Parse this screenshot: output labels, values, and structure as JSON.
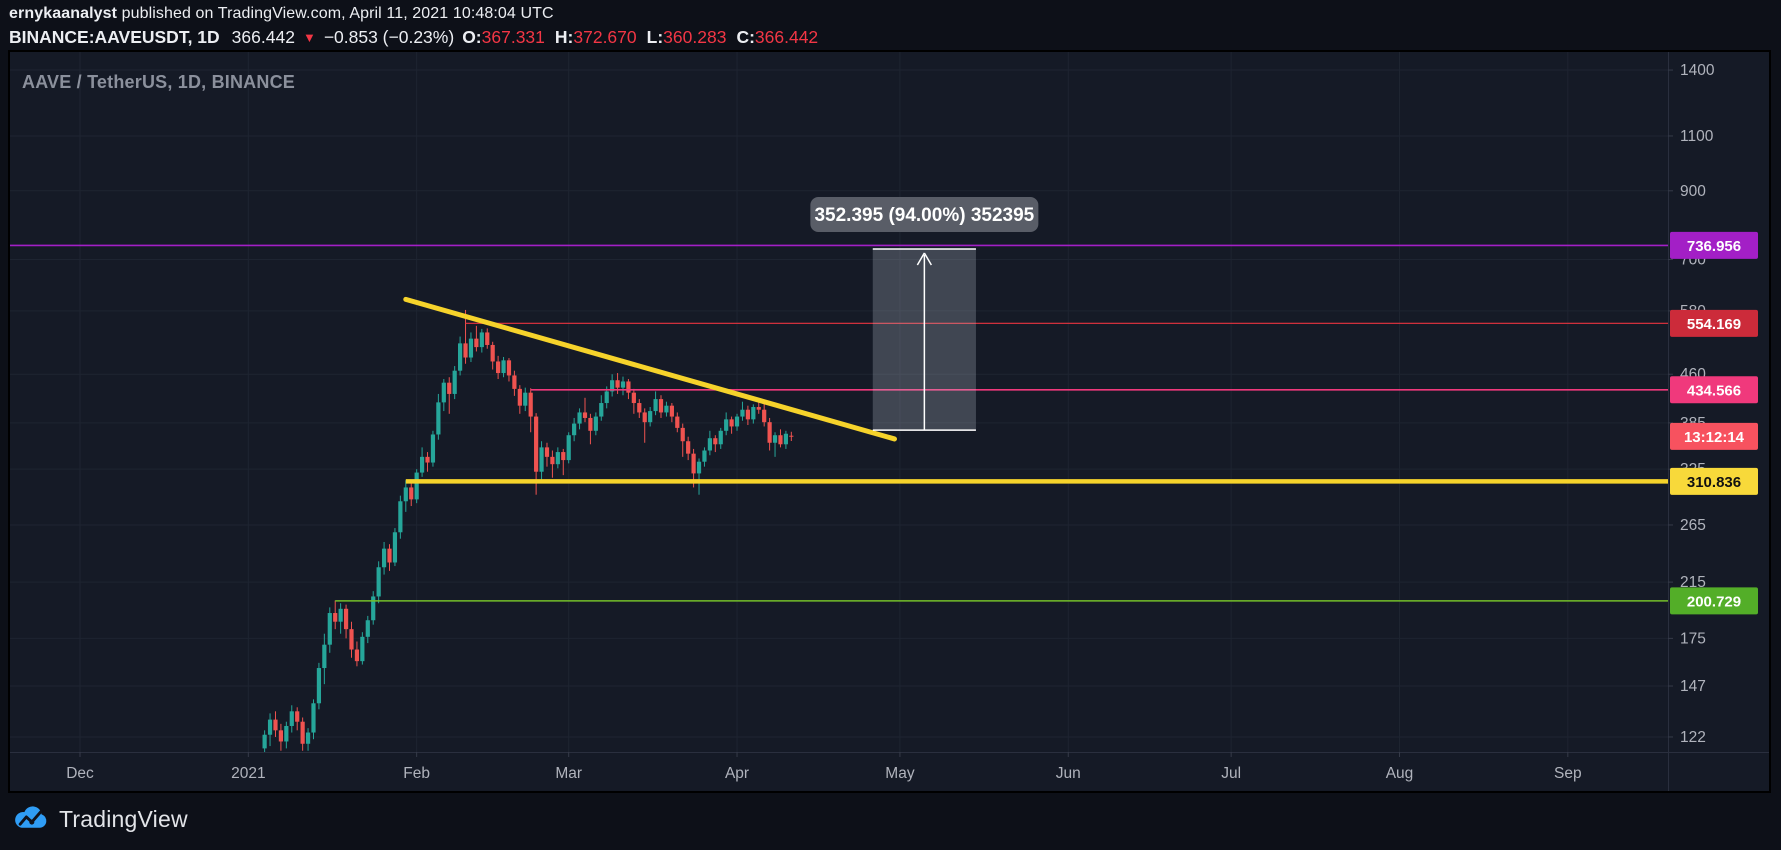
{
  "header": {
    "username": "ernykaanalyst",
    "byline_rest": " published on TradingView.com, April 11, 2021 10:48:04 UTC",
    "symbol": "BINANCE:AAVEUSDT, 1D",
    "last_price": "366.442",
    "change": "−0.853 (−0.23%)",
    "ohlc": [
      {
        "label": "O:",
        "value": "367.331"
      },
      {
        "label": "H:",
        "value": "372.670"
      },
      {
        "label": "L:",
        "value": "360.283"
      },
      {
        "label": "C:",
        "value": "366.442"
      }
    ],
    "value_color": "#f23645"
  },
  "chart": {
    "watermark": "AAVE / TetherUS, 1D, BINANCE"
  },
  "chart_data": {
    "type": "candlestick",
    "symbol": "AAVE/USDT",
    "interval": "1D",
    "colors": {
      "up": "#26a69a",
      "down": "#ef5350",
      "grid": "#1e2431",
      "axis_text": "#b0b3bc"
    },
    "x_axis": {
      "visible_range": [
        "2020-11-18",
        "2021-09-19"
      ],
      "ticks": [
        {
          "date": "2020-12-01",
          "label": "Dec"
        },
        {
          "date": "2021-01-01",
          "label": "2021"
        },
        {
          "date": "2021-02-01",
          "label": "Feb"
        },
        {
          "date": "2021-03-01",
          "label": "Mar"
        },
        {
          "date": "2021-04-01",
          "label": "Apr"
        },
        {
          "date": "2021-05-01",
          "label": "May"
        },
        {
          "date": "2021-06-01",
          "label": "Jun"
        },
        {
          "date": "2021-07-01",
          "label": "Jul"
        },
        {
          "date": "2021-08-01",
          "label": "Aug"
        },
        {
          "date": "2021-09-01",
          "label": "Sep"
        }
      ]
    },
    "y_axis": {
      "scale": "log",
      "visible_range": [
        115,
        1520
      ],
      "ticks": [
        1400,
        1100,
        900,
        700,
        580,
        460,
        385,
        325,
        265,
        215,
        175,
        147,
        122
      ]
    },
    "candles": [
      [
        "2021-01-04",
        117,
        125,
        111,
        123
      ],
      [
        "2021-01-05",
        123,
        133,
        118,
        130
      ],
      [
        "2021-01-06",
        130,
        134,
        122,
        125
      ],
      [
        "2021-01-07",
        125,
        128,
        116,
        120
      ],
      [
        "2021-01-08",
        120,
        129,
        117,
        127
      ],
      [
        "2021-01-09",
        127,
        137,
        124,
        134
      ],
      [
        "2021-01-10",
        134,
        136,
        125,
        129
      ],
      [
        "2021-01-11",
        129,
        131,
        116,
        119
      ],
      [
        "2021-01-12",
        119,
        126,
        116,
        124
      ],
      [
        "2021-01-13",
        124,
        140,
        121,
        138
      ],
      [
        "2021-01-14",
        138,
        160,
        135,
        157
      ],
      [
        "2021-01-15",
        157,
        178,
        148,
        171
      ],
      [
        "2021-01-16",
        171,
        196,
        166,
        192
      ],
      [
        "2021-01-17",
        192,
        201,
        181,
        186
      ],
      [
        "2021-01-18",
        186,
        199,
        178,
        195
      ],
      [
        "2021-01-19",
        195,
        198,
        175,
        181
      ],
      [
        "2021-01-20",
        181,
        186,
        163,
        168
      ],
      [
        "2021-01-21",
        168,
        173,
        158,
        161
      ],
      [
        "2021-01-22",
        161,
        179,
        159,
        176
      ],
      [
        "2021-01-23",
        176,
        190,
        172,
        187
      ],
      [
        "2021-01-24",
        187,
        208,
        184,
        204
      ],
      [
        "2021-01-25",
        204,
        232,
        199,
        227
      ],
      [
        "2021-01-26",
        227,
        249,
        221,
        243
      ],
      [
        "2021-01-27",
        243,
        247,
        224,
        231
      ],
      [
        "2021-01-28",
        231,
        262,
        228,
        258
      ],
      [
        "2021-01-29",
        258,
        295,
        252,
        289
      ],
      [
        "2021-01-30",
        289,
        312,
        278,
        304
      ],
      [
        "2021-01-31",
        304,
        309,
        284,
        291
      ],
      [
        "2021-02-01",
        291,
        325,
        287,
        321
      ],
      [
        "2021-02-02",
        321,
        352,
        316,
        340
      ],
      [
        "2021-02-03",
        340,
        346,
        322,
        333
      ],
      [
        "2021-02-04",
        333,
        374,
        328,
        369
      ],
      [
        "2021-02-05",
        369,
        428,
        362,
        415
      ],
      [
        "2021-02-06",
        415,
        452,
        402,
        446
      ],
      [
        "2021-02-07",
        446,
        455,
        398,
        428
      ],
      [
        "2021-02-08",
        428,
        474,
        420,
        466
      ],
      [
        "2021-02-09",
        466,
        528,
        458,
        515
      ],
      [
        "2021-02-10",
        515,
        582,
        478,
        489
      ],
      [
        "2021-02-11",
        489,
        536,
        481,
        524
      ],
      [
        "2021-02-12",
        524,
        549,
        500,
        508
      ],
      [
        "2021-02-13",
        508,
        543,
        498,
        536
      ],
      [
        "2021-02-14",
        536,
        544,
        505,
        512
      ],
      [
        "2021-02-15",
        512,
        518,
        468,
        482
      ],
      [
        "2021-02-16",
        482,
        492,
        452,
        462
      ],
      [
        "2021-02-17",
        462,
        490,
        455,
        484
      ],
      [
        "2021-02-18",
        484,
        488,
        448,
        458
      ],
      [
        "2021-02-19",
        458,
        466,
        425,
        436
      ],
      [
        "2021-02-20",
        436,
        442,
        398,
        410
      ],
      [
        "2021-02-21",
        410,
        438,
        402,
        430
      ],
      [
        "2021-02-22",
        430,
        437,
        372,
        394
      ],
      [
        "2021-02-23",
        394,
        399,
        296,
        322
      ],
      [
        "2021-02-24",
        322,
        360,
        310,
        352
      ],
      [
        "2021-02-25",
        352,
        358,
        328,
        340
      ],
      [
        "2021-02-26",
        340,
        348,
        315,
        331
      ],
      [
        "2021-02-27",
        331,
        352,
        326,
        346
      ],
      [
        "2021-02-28",
        346,
        350,
        318,
        336
      ],
      [
        "2021-03-01",
        336,
        372,
        332,
        368
      ],
      [
        "2021-03-02",
        368,
        392,
        360,
        384
      ],
      [
        "2021-03-03",
        384,
        406,
        376,
        400
      ],
      [
        "2021-03-04",
        400,
        422,
        386,
        392
      ],
      [
        "2021-03-05",
        392,
        398,
        356,
        374
      ],
      [
        "2021-03-06",
        374,
        400,
        368,
        394
      ],
      [
        "2021-03-07",
        394,
        426,
        388,
        414
      ],
      [
        "2021-03-08",
        414,
        440,
        406,
        432
      ],
      [
        "2021-03-09",
        432,
        460,
        424,
        450
      ],
      [
        "2021-03-10",
        450,
        462,
        428,
        438
      ],
      [
        "2021-03-11",
        438,
        456,
        426,
        448
      ],
      [
        "2021-03-12",
        448,
        452,
        420,
        430
      ],
      [
        "2021-03-13",
        430,
        436,
        398,
        414
      ],
      [
        "2021-03-14",
        414,
        420,
        392,
        400
      ],
      [
        "2021-03-15",
        400,
        406,
        358,
        386
      ],
      [
        "2021-03-16",
        386,
        408,
        380,
        402
      ],
      [
        "2021-03-17",
        402,
        432,
        396,
        420
      ],
      [
        "2021-03-18",
        420,
        426,
        392,
        400
      ],
      [
        "2021-03-19",
        400,
        416,
        394,
        410
      ],
      [
        "2021-03-20",
        410,
        414,
        386,
        394
      ],
      [
        "2021-03-21",
        394,
        400,
        372,
        378
      ],
      [
        "2021-03-22",
        378,
        384,
        340,
        360
      ],
      [
        "2021-03-23",
        360,
        366,
        336,
        344
      ],
      [
        "2021-03-24",
        344,
        350,
        304,
        320
      ],
      [
        "2021-03-25",
        320,
        338,
        296,
        334
      ],
      [
        "2021-03-26",
        334,
        352,
        328,
        348
      ],
      [
        "2021-03-27",
        348,
        374,
        342,
        364
      ],
      [
        "2021-03-28",
        364,
        368,
        346,
        356
      ],
      [
        "2021-03-29",
        356,
        378,
        350,
        374
      ],
      [
        "2021-03-30",
        374,
        400,
        368,
        390
      ],
      [
        "2021-03-31",
        390,
        394,
        370,
        380
      ],
      [
        "2021-04-01",
        380,
        398,
        374,
        394
      ],
      [
        "2021-04-02",
        394,
        416,
        388,
        404
      ],
      [
        "2021-04-03",
        404,
        410,
        382,
        390
      ],
      [
        "2021-04-04",
        390,
        412,
        384,
        408
      ],
      [
        "2021-04-05",
        408,
        422,
        398,
        404
      ],
      [
        "2021-04-06",
        404,
        418,
        380,
        386
      ],
      [
        "2021-04-07",
        386,
        392,
        348,
        358
      ],
      [
        "2021-04-08",
        358,
        372,
        340,
        368
      ],
      [
        "2021-04-09",
        368,
        376,
        352,
        356
      ],
      [
        "2021-04-10",
        356,
        374,
        350,
        370
      ],
      [
        "2021-04-11",
        367.33,
        372.67,
        360.28,
        366.44
      ]
    ],
    "levels": [
      {
        "id": "purple-line",
        "price": 736.956,
        "label": "736.956",
        "line_color": "#a31fc6",
        "tag_bg": "#a31fc6",
        "tag_text": "#ffffff",
        "width": 1.6,
        "from": null
      },
      {
        "id": "red-line",
        "price": 554.169,
        "label": "554.169",
        "line_color": "#e8343f",
        "tag_bg": "#cc2b3a",
        "tag_text": "#ffffff",
        "width": 1.2,
        "from": "2021-02-10"
      },
      {
        "id": "pink-line",
        "price": 434.566,
        "label": "434.566",
        "line_color": "#f0397c",
        "tag_bg": "#f0397c",
        "tag_text": "#ffffff",
        "width": 1.6,
        "from": "2021-02-22"
      },
      {
        "id": "yellow-line",
        "price": 310.836,
        "label": "310.836",
        "line_color": "#f6d32b",
        "tag_bg": "#f8d93a",
        "tag_text": "#111111",
        "width": 4.5,
        "from": "2021-01-30"
      },
      {
        "id": "green-line",
        "price": 200.729,
        "label": "200.729",
        "line_color": "#74bf2a",
        "tag_bg": "#53ae28",
        "tag_text": "#ffffff",
        "width": 1.6,
        "from": "2021-01-17"
      }
    ],
    "trendline": {
      "from": {
        "date": "2021-01-30",
        "price": 605
      },
      "to": {
        "date": "2021-04-30",
        "price": 363
      },
      "color": "#f6d32b",
      "width": 5
    },
    "measurement": {
      "box": {
        "from_date": "2021-04-26",
        "to_date": "2021-05-15",
        "from_price": 375.0,
        "to_price": 727.4
      },
      "tooltip": "352.395 (94.00%) 352395",
      "fill": "rgba(196,203,216,0.25)",
      "accent": "#ffffff",
      "bubble_bg": "#595d67"
    },
    "countdown": {
      "text": "13:12:14",
      "price": 366.442,
      "bg": "#f7525f",
      "fg": "#ffffff"
    }
  },
  "footer": {
    "brand": "TradingView"
  }
}
